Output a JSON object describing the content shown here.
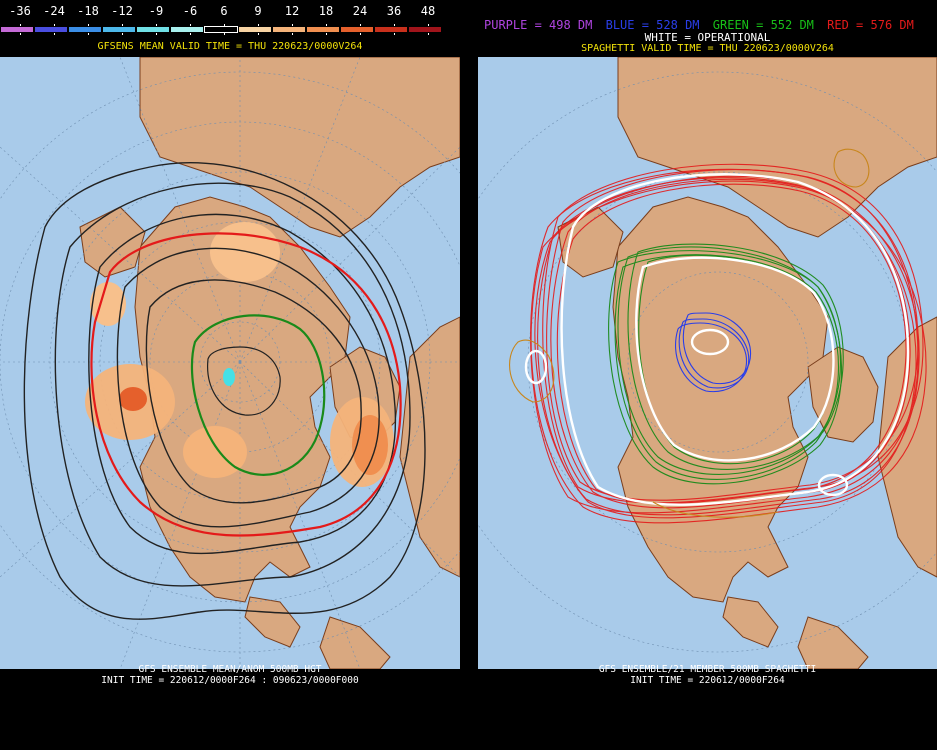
{
  "left_panel": {
    "valid_title": "GFSENS MEAN VALID TIME = THU 220623/0000V264",
    "bottom_line1": "GFS ENSEMBLE MEAN/ANOM 500MB HGT",
    "bottom_line2": "INIT TIME = 220612/0000F264 : 090623/0000F000",
    "scale_labels": [
      "-36",
      "-24",
      "-18",
      "-12",
      "-9",
      "-6",
      "6",
      "9",
      "12",
      "18",
      "24",
      "36",
      "48"
    ],
    "scale_colors": [
      "#c46ad6",
      "#4a4ee0",
      "#3b8ee6",
      "#4db8ea",
      "#70e0e6",
      "#a8f0ee",
      "#000000",
      "#f7d3a3",
      "#f4b37a",
      "#f08f50",
      "#e5602c",
      "#c8301c",
      "#a0141b"
    ]
  },
  "right_panel": {
    "legend": [
      {
        "text": "PURPLE = 498 DM",
        "color": "#b044e0"
      },
      {
        "text": "BLUE = 528 DM",
        "color": "#2a3ee8"
      },
      {
        "text": "GREEN = 552 DM",
        "color": "#18c018"
      },
      {
        "text": "RED = 576 DM",
        "color": "#e41a1a"
      }
    ],
    "operational_label": "WHITE = OPERATIONAL",
    "valid_title": "SPAGHETTI VALID TIME = THU 220623/0000V264",
    "bottom_line1": "GFS ENSEMBLE/21 MEMBER 500MB SPAGHETTI",
    "bottom_line2": "INIT TIME = 220612/0000F264"
  },
  "colors": {
    "ocean": "#a9cbea",
    "land": "#d9a880",
    "border": "#7a3e1c",
    "contour": "#222222",
    "red": "#e41a1a",
    "green": "#1a8a1a",
    "blue": "#2a3ee8",
    "white": "#ffffff"
  }
}
